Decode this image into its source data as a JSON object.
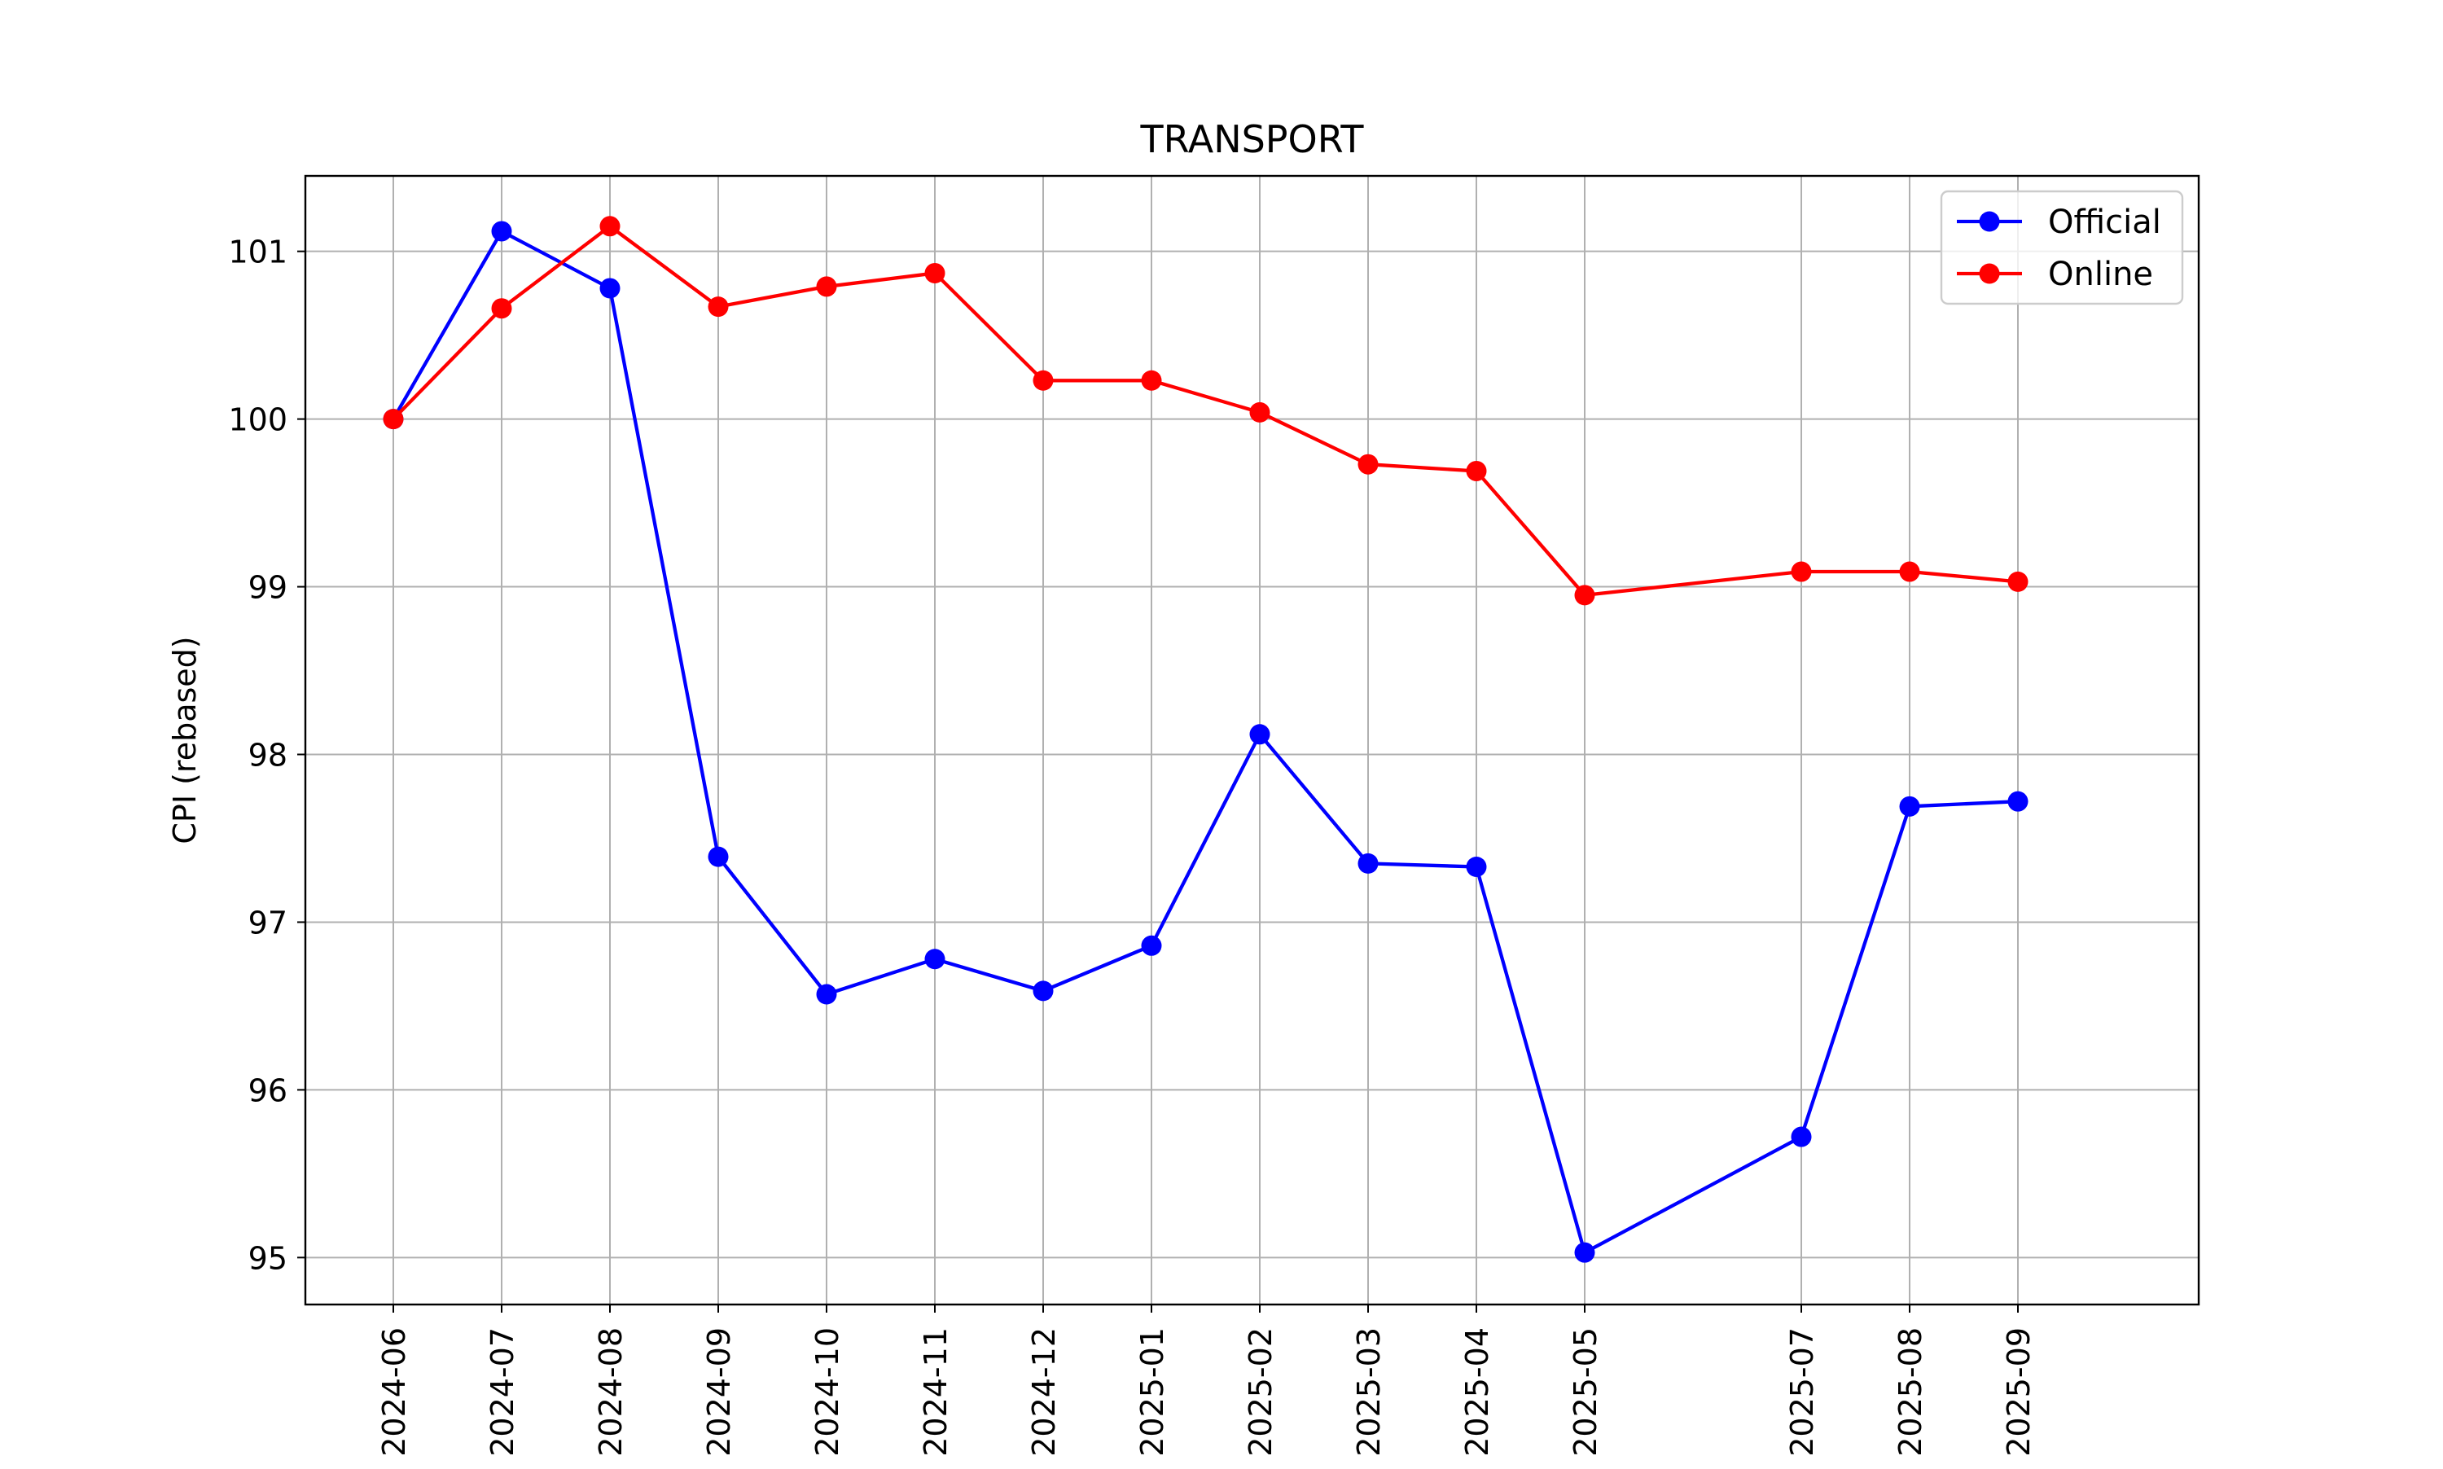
{
  "chart_data": {
    "type": "line",
    "title": "TRANSPORT",
    "xlabel": "",
    "ylabel": "CPI (rebased)",
    "x": [
      "2024-06",
      "2024-07",
      "2024-08",
      "2024-09",
      "2024-10",
      "2024-11",
      "2024-12",
      "2025-01",
      "2025-02",
      "2025-03",
      "2025-04",
      "2025-05",
      "2025-07",
      "2025-08",
      "2025-09"
    ],
    "x_is_date": true,
    "ylim": [
      94.72,
      101.45
    ],
    "yticks": [
      95,
      96,
      97,
      98,
      99,
      100,
      101
    ],
    "grid": true,
    "legend_position": "top-right",
    "series": [
      {
        "name": "Official",
        "color": "#0000ff",
        "marker": "circle",
        "values": [
          100.0,
          101.12,
          100.78,
          97.39,
          96.57,
          96.78,
          96.59,
          96.86,
          98.12,
          97.35,
          97.33,
          95.03,
          95.72,
          97.69,
          97.72
        ]
      },
      {
        "name": "Online",
        "color": "#ff0000",
        "marker": "circle",
        "values": [
          100.0,
          100.66,
          101.15,
          100.67,
          100.79,
          100.87,
          100.23,
          100.23,
          100.04,
          99.73,
          99.69,
          98.95,
          99.09,
          99.09,
          99.03
        ]
      }
    ]
  }
}
